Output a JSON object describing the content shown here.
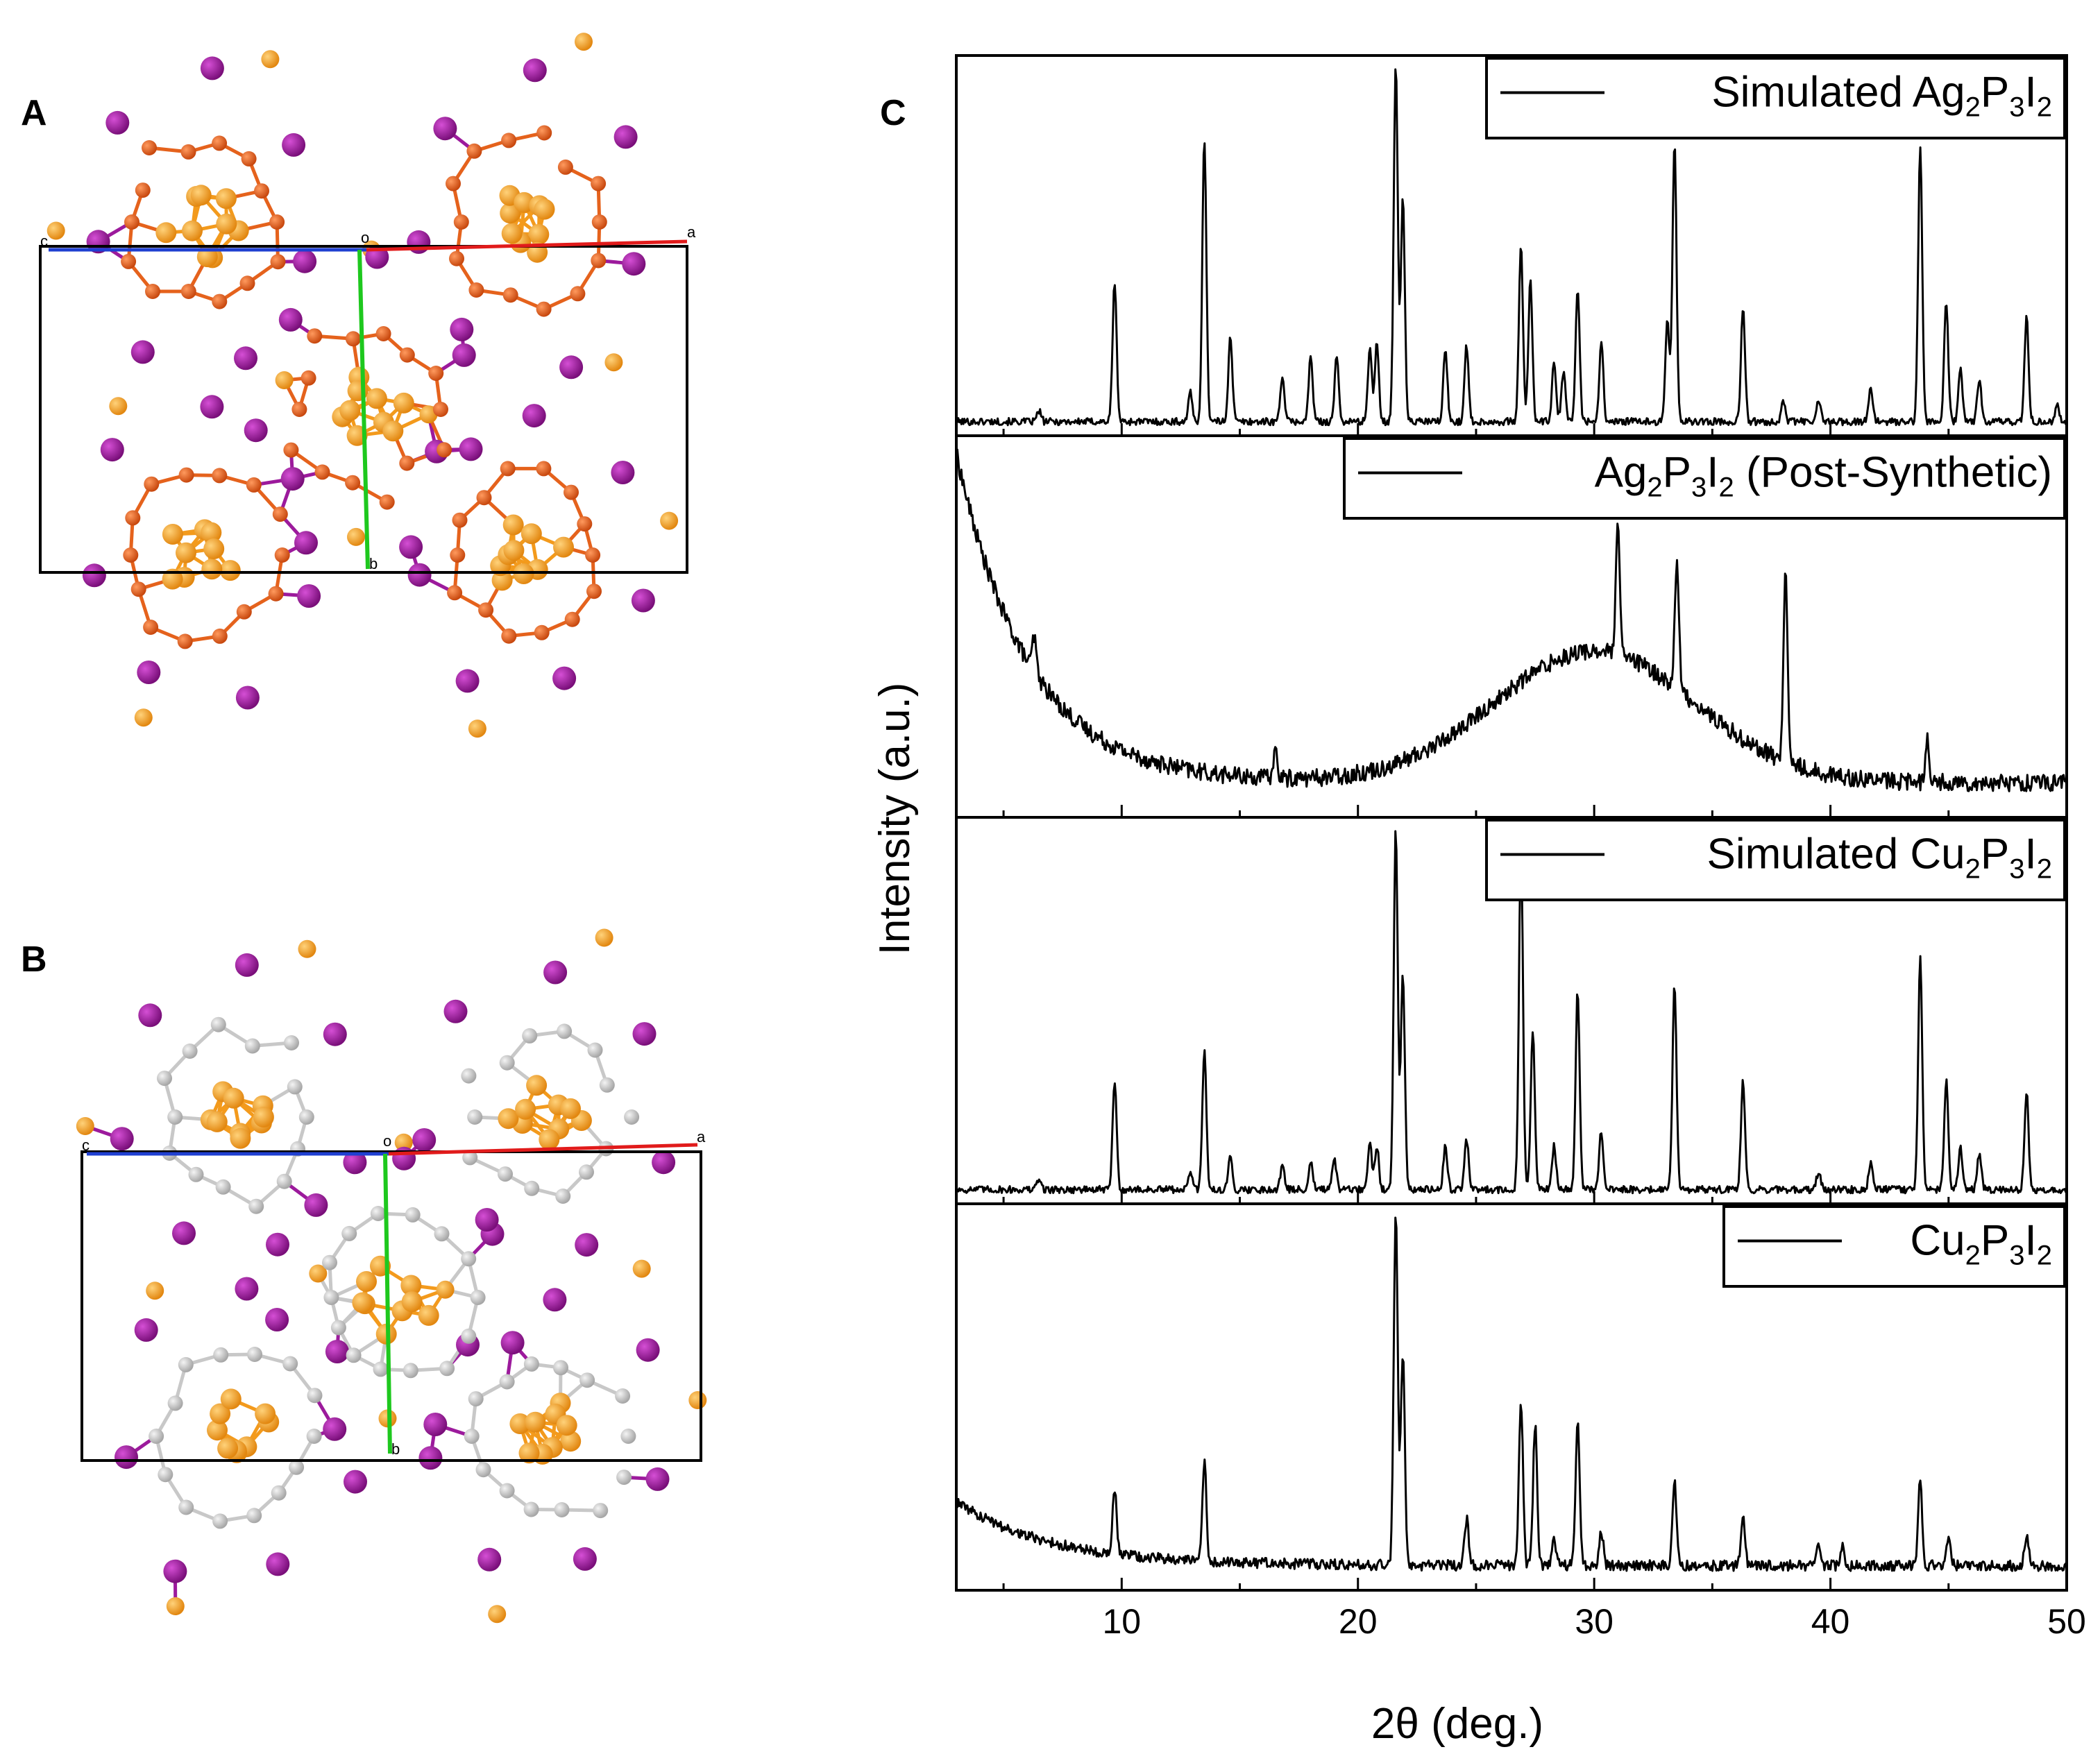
{
  "panels": {
    "a_label": "A",
    "b_label": "B",
    "c_label": "C"
  },
  "structure_a": {
    "axis_labels": {
      "c": "c",
      "o": "o",
      "a": "a",
      "b": "b"
    },
    "colors": {
      "cluster": "#f39a1c",
      "linker": "#e5621c",
      "halide": "#9c1a9c"
    }
  },
  "structure_b": {
    "axis_labels": {
      "c": "c",
      "o": "o",
      "a": "a",
      "b": "b"
    },
    "colors": {
      "cluster": "#f39a1c",
      "linker": "#c8c8c8",
      "halide": "#9c1a9c"
    }
  },
  "chart_data": {
    "type": "line",
    "title": "",
    "xlabel": "2θ (deg.)",
    "ylabel": "Intensity (a.u.)",
    "xlim": [
      3,
      50
    ],
    "xticks": [
      10,
      20,
      30,
      40,
      50
    ],
    "stacked": true,
    "grid": false,
    "series": [
      {
        "name": "Simulated Ag2P3I2",
        "legend": {
          "pre": "Simulated Ag",
          "s1": "2",
          "m1": "P",
          "s2": "3",
          "m2": "I",
          "s3": "2",
          "post": ""
        },
        "baseline": 0.02,
        "noise": 0.01,
        "peaks": [
          [
            6.5,
            0.03
          ],
          [
            9.7,
            0.39
          ],
          [
            12.9,
            0.08
          ],
          [
            13.5,
            0.79
          ],
          [
            14.6,
            0.24
          ],
          [
            16.8,
            0.13
          ],
          [
            18,
            0.18
          ],
          [
            19.1,
            0.18
          ],
          [
            20.5,
            0.2
          ],
          [
            20.8,
            0.22
          ],
          [
            21.6,
            1.0
          ],
          [
            21.9,
            0.62
          ],
          [
            23.7,
            0.2
          ],
          [
            24.6,
            0.21
          ],
          [
            26.9,
            0.49
          ],
          [
            27.3,
            0.39
          ],
          [
            28.3,
            0.16
          ],
          [
            28.7,
            0.14
          ],
          [
            29.3,
            0.37
          ],
          [
            30.3,
            0.22
          ],
          [
            33.1,
            0.28
          ],
          [
            33.4,
            0.78
          ],
          [
            36.3,
            0.32
          ],
          [
            38,
            0.06
          ],
          [
            39.5,
            0.06
          ],
          [
            41.7,
            0.09
          ],
          [
            43.8,
            0.77
          ],
          [
            44.9,
            0.33
          ],
          [
            45.5,
            0.15
          ],
          [
            46.3,
            0.12
          ],
          [
            48.3,
            0.29
          ],
          [
            49.6,
            0.05
          ]
        ]
      },
      {
        "name": "Ag2P3I2 (Post-Synthetic)",
        "legend": {
          "pre": "Ag",
          "s1": "2",
          "m1": "P",
          "s2": "3",
          "m2": "I",
          "s3": "2",
          "post": " (Post-Synthetic)"
        },
        "baseline": 0.08,
        "noise": 0.025,
        "amorphous_background": {
          "decay_amplitude": 0.95,
          "decay_rate": 0.33,
          "hump_center": 30,
          "hump_width": 6,
          "hump_height": 0.38
        },
        "peaks": [
          [
            6.3,
            0.1
          ],
          [
            16.5,
            0.08
          ],
          [
            31,
            0.36
          ],
          [
            33.5,
            0.38
          ],
          [
            38.1,
            0.55
          ],
          [
            44.1,
            0.13
          ]
        ]
      },
      {
        "name": "Simulated Cu2P3I2",
        "legend": {
          "pre": "Simulated Cu",
          "s1": "2",
          "m1": "P",
          "s2": "3",
          "m2": "I",
          "s3": "2",
          "post": ""
        },
        "baseline": 0.02,
        "noise": 0.01,
        "peaks": [
          [
            6.5,
            0.03
          ],
          [
            9.7,
            0.3
          ],
          [
            12.9,
            0.05
          ],
          [
            13.5,
            0.38
          ],
          [
            14.6,
            0.09
          ],
          [
            16.8,
            0.07
          ],
          [
            18,
            0.08
          ],
          [
            19,
            0.08
          ],
          [
            20.5,
            0.13
          ],
          [
            20.8,
            0.12
          ],
          [
            21.6,
            1.0
          ],
          [
            21.9,
            0.6
          ],
          [
            23.7,
            0.12
          ],
          [
            24.6,
            0.14
          ],
          [
            26.9,
            0.95
          ],
          [
            27.4,
            0.44
          ],
          [
            28.3,
            0.12
          ],
          [
            29.3,
            0.55
          ],
          [
            30.3,
            0.16
          ],
          [
            33.4,
            0.57
          ],
          [
            36.3,
            0.3
          ],
          [
            39.5,
            0.05
          ],
          [
            41.7,
            0.07
          ],
          [
            43.8,
            0.64
          ],
          [
            44.9,
            0.3
          ],
          [
            45.5,
            0.12
          ],
          [
            46.3,
            0.1
          ],
          [
            48.3,
            0.27
          ]
        ]
      },
      {
        "name": "Cu2P3I2",
        "legend": {
          "pre": "Cu",
          "s1": "2",
          "m1": "P",
          "s2": "3",
          "m2": "I",
          "s3": "2",
          "post": ""
        },
        "baseline": 0.05,
        "noise": 0.015,
        "amorphous_background": {
          "decay_amplitude": 0.18,
          "decay_rate": 0.25,
          "hump_center": 0,
          "hump_width": 1,
          "hump_height": 0
        },
        "peaks": [
          [
            9.7,
            0.18
          ],
          [
            13.5,
            0.28
          ],
          [
            21.6,
            1.0
          ],
          [
            21.9,
            0.6
          ],
          [
            24.6,
            0.13
          ],
          [
            26.9,
            0.47
          ],
          [
            27.5,
            0.4
          ],
          [
            28.3,
            0.08
          ],
          [
            29.3,
            0.4
          ],
          [
            30.3,
            0.1
          ],
          [
            33.4,
            0.24
          ],
          [
            36.3,
            0.13
          ],
          [
            39.5,
            0.06
          ],
          [
            40.5,
            0.06
          ],
          [
            43.8,
            0.24
          ],
          [
            45,
            0.08
          ],
          [
            48.3,
            0.08
          ]
        ]
      }
    ]
  }
}
